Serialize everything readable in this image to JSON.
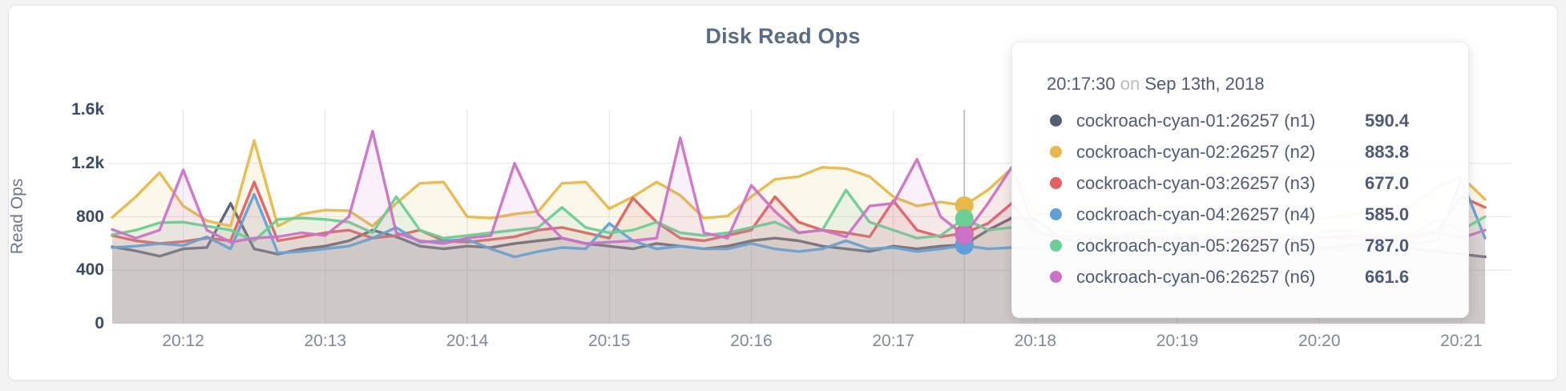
{
  "chart_data": {
    "type": "area",
    "title": "Disk Read Ops",
    "ylabel": "Read Ops",
    "ylim": [
      0,
      1600
    ],
    "grid": true,
    "legend_position": "hover-tooltip",
    "y_ticks": [
      {
        "label": "0",
        "value": 0
      },
      {
        "label": "400",
        "value": 400
      },
      {
        "label": "800",
        "value": 800
      },
      {
        "label": "1.2k",
        "value": 1200
      },
      {
        "label": "1.6k",
        "value": 1600
      }
    ],
    "x_tick_labels": [
      "20:12",
      "20:13",
      "20:14",
      "20:15",
      "20:16",
      "20:17",
      "20:18",
      "20:19",
      "20:20",
      "20:21"
    ],
    "x_start_time": "20:11:30",
    "x_interval_seconds": 10,
    "hover": {
      "index": 36,
      "time": "20:17:30",
      "date": "Sep 13th, 2018"
    },
    "series": [
      {
        "name": "cockroach-cyan-01:26257 (n1)",
        "color": "#545f76",
        "values": [
          575,
          545,
          505,
          560,
          570,
          900,
          560,
          520,
          560,
          580,
          620,
          700,
          650,
          580,
          560,
          580,
          570,
          600,
          620,
          640,
          600,
          580,
          560,
          600,
          580,
          560,
          580,
          620,
          640,
          620,
          580,
          560,
          540,
          580,
          560,
          580,
          590.4,
          700,
          790,
          780,
          650,
          600,
          580,
          560,
          580,
          600,
          580,
          560,
          580,
          600,
          580,
          560,
          580,
          600,
          580,
          560,
          540,
          520,
          500
        ]
      },
      {
        "name": "cockroach-cyan-02:26257 (n2)",
        "color": "#e8b84b",
        "values": [
          795,
          950,
          1130,
          880,
          770,
          730,
          1370,
          730,
          820,
          850,
          845,
          730,
          900,
          1050,
          1060,
          800,
          790,
          820,
          840,
          1050,
          1060,
          860,
          950,
          1060,
          960,
          790,
          805,
          950,
          1080,
          1100,
          1170,
          1160,
          1100,
          950,
          880,
          910,
          883.8,
          1000,
          1160,
          820,
          830,
          780,
          810,
          790,
          820,
          840,
          810,
          790,
          830,
          800,
          820,
          790,
          810,
          830,
          790,
          900,
          1020,
          1100,
          930
        ]
      },
      {
        "name": "cockroach-cyan-03:26257 (n3)",
        "color": "#e0615e",
        "values": [
          660,
          620,
          600,
          615,
          640,
          620,
          1060,
          620,
          650,
          680,
          700,
          640,
          660,
          700,
          620,
          610,
          630,
          650,
          700,
          720,
          680,
          640,
          940,
          760,
          640,
          620,
          660,
          700,
          950,
          760,
          700,
          680,
          650,
          920,
          700,
          650,
          677,
          750,
          900,
          680,
          650,
          660,
          640,
          660,
          650,
          640,
          660,
          650,
          640,
          660,
          650,
          640,
          660,
          650,
          640,
          660,
          700,
          950,
          870
        ]
      },
      {
        "name": "cockroach-cyan-04:26257 (n4)",
        "color": "#61a0d6",
        "values": [
          570,
          580,
          600,
          585,
          650,
          560,
          968,
          530,
          540,
          560,
          580,
          640,
          720,
          610,
          620,
          630,
          560,
          500,
          540,
          570,
          560,
          750,
          620,
          560,
          580,
          560,
          560,
          600,
          560,
          540,
          560,
          620,
          560,
          570,
          540,
          560,
          585,
          560,
          570,
          560,
          550,
          560,
          570,
          560,
          550,
          560,
          570,
          560,
          550,
          560,
          570,
          560,
          550,
          560,
          570,
          600,
          620,
          1080,
          640
        ]
      },
      {
        "name": "cockroach-cyan-05:26257 (n5)",
        "color": "#6bce92",
        "values": [
          665,
          700,
          755,
          760,
          730,
          700,
          620,
          780,
          790,
          780,
          760,
          680,
          950,
          700,
          640,
          660,
          680,
          700,
          720,
          870,
          720,
          680,
          700,
          760,
          680,
          660,
          680,
          720,
          760,
          680,
          700,
          1000,
          760,
          700,
          640,
          660,
          787,
          700,
          720,
          760,
          700,
          680,
          660,
          680,
          700,
          680,
          660,
          680,
          700,
          680,
          660,
          680,
          700,
          680,
          660,
          680,
          780,
          700,
          800
        ]
      },
      {
        "name": "cockroach-cyan-06:26257 (n6)",
        "color": "#cb72c7",
        "values": [
          705,
          640,
          700,
          1150,
          700,
          610,
          640,
          650,
          680,
          660,
          800,
          1440,
          680,
          620,
          600,
          640,
          660,
          1200,
          820,
          640,
          600,
          610,
          620,
          640,
          1390,
          680,
          640,
          1035,
          840,
          680,
          700,
          650,
          880,
          900,
          1230,
          800,
          661.6,
          900,
          1170,
          700,
          640,
          660,
          620,
          650,
          640,
          660,
          630,
          650,
          640,
          660,
          630,
          650,
          640,
          660,
          630,
          650,
          680,
          640,
          700
        ]
      }
    ]
  },
  "tooltip": {
    "time": "20:17:30",
    "conjunction": "on",
    "date": "Sep 13th, 2018",
    "rows": [
      {
        "label": "cockroach-cyan-01:26257 (n1)",
        "value": "590.4",
        "color": "#545f76"
      },
      {
        "label": "cockroach-cyan-02:26257 (n2)",
        "value": "883.8",
        "color": "#e8b84b"
      },
      {
        "label": "cockroach-cyan-03:26257 (n3)",
        "value": "677.0",
        "color": "#e0615e"
      },
      {
        "label": "cockroach-cyan-04:26257 (n4)",
        "value": "585.0",
        "color": "#61a0d6"
      },
      {
        "label": "cockroach-cyan-05:26257 (n5)",
        "value": "787.0",
        "color": "#6bce92"
      },
      {
        "label": "cockroach-cyan-06:26257 (n6)",
        "value": "661.6",
        "color": "#cb72c7"
      }
    ]
  },
  "style_colors": {
    "grid": "#e7e8ea",
    "crosshair": "#b4b8bf",
    "title_text": "#5a6b87",
    "y_tick_text": "#3c4a64",
    "x_tick_text": "#7e899b"
  }
}
